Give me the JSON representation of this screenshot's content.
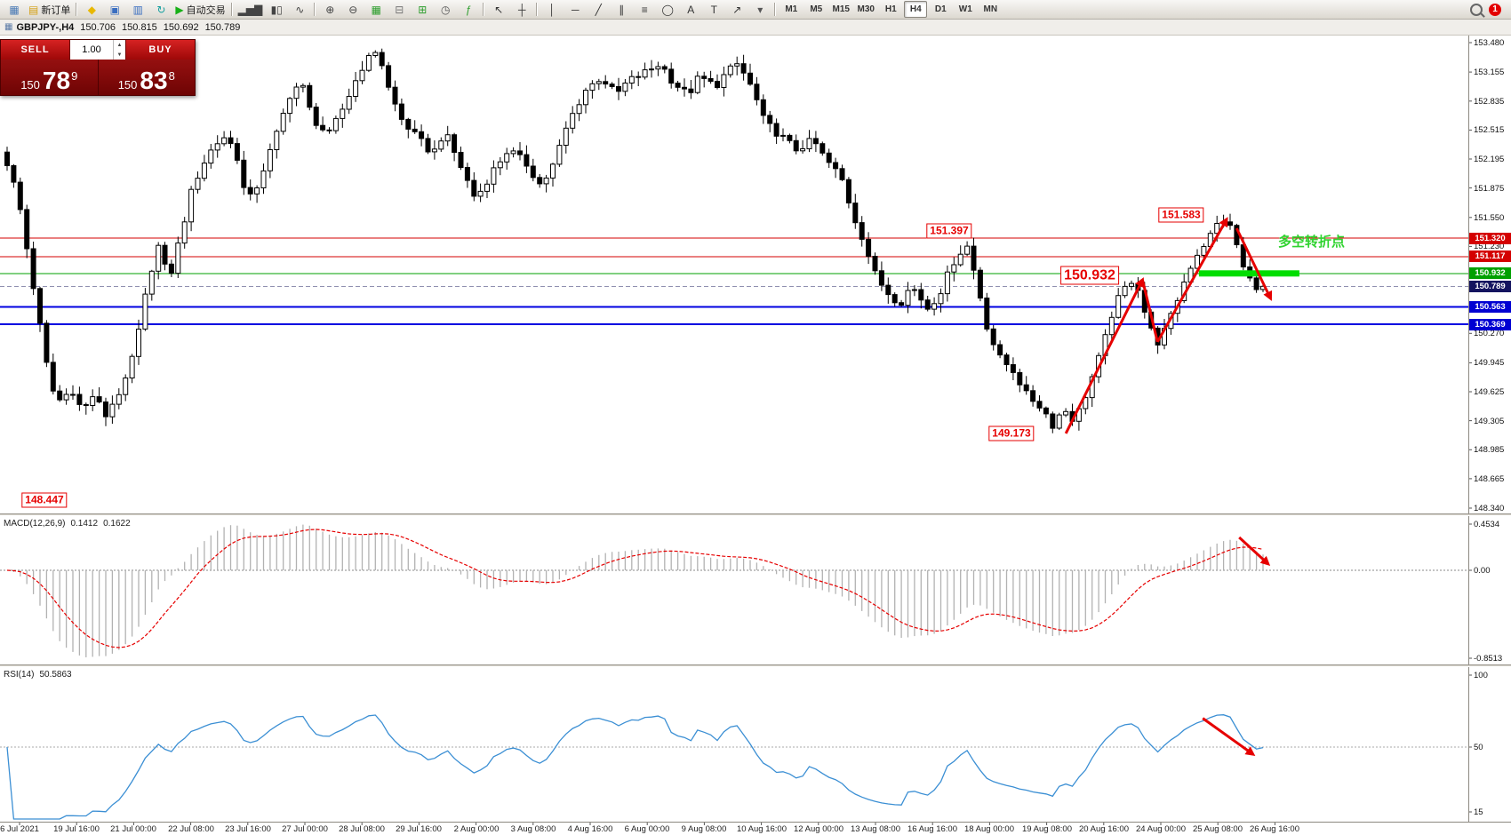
{
  "window": {
    "notification_badge": "1"
  },
  "toolbar": {
    "groups": [
      {
        "items": [
          {
            "name": "new-chart-window",
            "glyph": "▦",
            "color": "#4a7ab5"
          },
          {
            "name": "new-order",
            "glyph": "▤",
            "color": "#d4a017",
            "label": "新订单"
          }
        ]
      },
      {
        "items": [
          {
            "name": "market",
            "glyph": "◆",
            "color": "#e8b800"
          },
          {
            "name": "data-window",
            "glyph": "▣",
            "color": "#3a6ec0"
          },
          {
            "name": "terminal-journal",
            "glyph": "▥",
            "color": "#3a6ec0"
          },
          {
            "name": "refresh",
            "glyph": "↻",
            "color": "#18a0a0"
          },
          {
            "name": "autotrading",
            "glyph": "▶",
            "color": "#18b018",
            "label": "自动交易"
          }
        ]
      },
      {
        "items": [
          {
            "name": "bar-chart-mode",
            "glyph": "▂▅▇",
            "color": "#444444"
          },
          {
            "name": "candlestick-mode",
            "glyph": "▮▯",
            "color": "#444444"
          },
          {
            "name": "line-chart-mode",
            "glyph": "∿",
            "color": "#444444"
          }
        ]
      },
      {
        "items": [
          {
            "name": "zoom-in",
            "glyph": "⊕",
            "color": "#444444"
          },
          {
            "name": "zoom-out",
            "glyph": "⊖",
            "color": "#444444"
          },
          {
            "name": "tile-windows",
            "glyph": "▦",
            "color": "#2e9e2e"
          },
          {
            "name": "cascade-windows",
            "glyph": "⊟",
            "color": "#777777"
          },
          {
            "name": "new-chart",
            "glyph": "⊞",
            "color": "#2e9e2e"
          },
          {
            "name": "period-clock",
            "glyph": "◷",
            "color": "#555555"
          },
          {
            "name": "indicators",
            "glyph": "ƒ",
            "color": "#2e9e2e"
          }
        ]
      },
      {
        "items": [
          {
            "name": "cursor",
            "glyph": "↖",
            "color": "#333333"
          },
          {
            "name": "crosshair",
            "glyph": "┼",
            "color": "#333333"
          }
        ]
      },
      {
        "items": [
          {
            "name": "vertical-line",
            "glyph": "│",
            "color": "#333333"
          },
          {
            "name": "horizontal-line",
            "glyph": "─",
            "color": "#333333"
          },
          {
            "name": "trendline",
            "glyph": "╱",
            "color": "#333333"
          },
          {
            "name": "equidistant-channel",
            "glyph": "∥",
            "color": "#333333"
          },
          {
            "name": "fibonacci",
            "glyph": "≡",
            "color": "#333333"
          },
          {
            "name": "ellipse",
            "glyph": "◯",
            "color": "#333333"
          },
          {
            "name": "text",
            "glyph": "A",
            "color": "#333333"
          },
          {
            "name": "text-label",
            "glyph": "T",
            "color": "#333333"
          },
          {
            "name": "arrows",
            "glyph": "↗",
            "color": "#333333"
          },
          {
            "name": "arrows-dropdown",
            "glyph": "▾",
            "color": "#555555"
          }
        ]
      }
    ],
    "timeframes": [
      "M1",
      "M5",
      "M15",
      "M30",
      "H1",
      "H4",
      "D1",
      "W1",
      "MN"
    ],
    "active_timeframe": "H4"
  },
  "trade_panel": {
    "sell_label": "SELL",
    "buy_label": "BUY",
    "volume": "1.00",
    "stepper_up": "▲",
    "stepper_down": "▼",
    "sell_price": {
      "prefix": "150",
      "big": "78",
      "sup": "9"
    },
    "buy_price": {
      "prefix": "150",
      "big": "83",
      "sup": "8"
    }
  },
  "chart": {
    "symbol_period": "GBPJPY-,H4",
    "ohlc": {
      "open": "150.706",
      "high": "150.815",
      "low": "150.692",
      "close": "150.789"
    },
    "hlines": [
      {
        "label": "151.320",
        "price": 151.32,
        "color": "#d40000",
        "width": 1,
        "tag_bg": "#d40000"
      },
      {
        "label": "151.117",
        "price": 151.117,
        "color": "#d40000",
        "width": 1,
        "tag_bg": "#d40000"
      },
      {
        "label": "150.932",
        "price": 150.932,
        "color": "#00a000",
        "width": 1,
        "tag_bg": "#00a000"
      },
      {
        "label": "150.789",
        "price": 150.789,
        "color": "#9090b0",
        "width": 1,
        "dashed": true,
        "tag_bg": "#14145f"
      },
      {
        "label": "150.563",
        "price": 150.563,
        "color": "#0000e0",
        "width": 2,
        "tag_bg": "#0000d2"
      },
      {
        "label": "150.369",
        "price": 150.369,
        "color": "#0000e0",
        "width": 2,
        "tag_bg": "#0000d2"
      }
    ],
    "callouts": [
      {
        "text": "151.397",
        "t": 0.75,
        "price": 151.4,
        "size": "md"
      },
      {
        "text": "151.583",
        "t": 0.935,
        "price": 151.575,
        "size": "md"
      },
      {
        "text": "150.932",
        "t": 0.862,
        "price": 150.915,
        "size": "lg"
      },
      {
        "text": "149.173",
        "t": 0.8,
        "price": 149.16,
        "size": "md"
      },
      {
        "text": "148.447",
        "t": 0.03,
        "price": 148.43,
        "size": "md"
      }
    ],
    "note": {
      "text": "多空转折点",
      "t": 1.012,
      "price": 151.3,
      "color": "#2fd32f"
    },
    "highlight": {
      "t1": 0.949,
      "t2": 1.029,
      "price": 150.932,
      "color": "#00dd00",
      "thickness": 7
    },
    "trend_arrows": [
      {
        "pts": [
          [
            0.843,
            149.165
          ],
          [
            0.904,
            150.861
          ]
        ],
        "arrow": true
      },
      {
        "pts": [
          [
            0.904,
            150.861
          ],
          [
            0.916,
            150.175
          ]
        ],
        "arrow": false
      },
      {
        "pts": [
          [
            0.916,
            150.175
          ],
          [
            0.971,
            151.528
          ]
        ],
        "arrow": true
      },
      {
        "pts": [
          [
            0.979,
            151.43
          ],
          [
            1.006,
            150.655
          ]
        ],
        "arrow": true
      }
    ],
    "macd_arrow": {
      "pts": [
        [
          0.981,
          0.31
        ],
        [
          1.004,
          0.06
        ]
      ]
    },
    "rsi_arrow": {
      "pts": [
        [
          0.952,
          70
        ],
        [
          0.992,
          45
        ]
      ]
    }
  },
  "price_axis": {
    "labels": [
      "153.480",
      "153.155",
      "152.835",
      "152.515",
      "152.195",
      "151.875",
      "151.550",
      "151.230",
      "150.910",
      "150.590",
      "150.270",
      "149.945",
      "149.625",
      "149.305",
      "148.985",
      "148.665",
      "148.340"
    ]
  },
  "time_axis": {
    "labels": [
      "6 Jul 2021",
      "19 Jul 16:00",
      "21 Jul 00:00",
      "22 Jul 08:00",
      "23 Jul 16:00",
      "27 Jul 00:00",
      "28 Jul 08:00",
      "29 Jul 16:00",
      "2 Aug 00:00",
      "3 Aug 08:00",
      "4 Aug 16:00",
      "6 Aug 00:00",
      "9 Aug 08:00",
      "10 Aug 16:00",
      "12 Aug 00:00",
      "13 Aug 08:00",
      "16 Aug 16:00",
      "18 Aug 00:00",
      "19 Aug 08:00",
      "20 Aug 16:00",
      "24 Aug 00:00",
      "25 Aug 08:00",
      "26 Aug 16:00"
    ]
  },
  "indicators": {
    "macd": {
      "label": "MACD(12,26,9)",
      "value1": "0.1412",
      "value2": "0.1622",
      "axis": [
        "0.4534",
        "0.00",
        "-0.8513"
      ]
    },
    "rsi": {
      "label": "RSI(14)",
      "value": "50.5863",
      "axis": [
        "100",
        "50",
        "15"
      ]
    }
  },
  "chart_data": {
    "type": "candlestick",
    "symbol": "GBPJPY-",
    "timeframe": "H4",
    "current_bar": {
      "open": 150.706,
      "high": 150.815,
      "low": 150.692,
      "close": 150.789
    },
    "y_axis": {
      "min": 148.34,
      "max": 153.48
    },
    "candle_count": 192,
    "levels": [
      151.32,
      151.117,
      150.932,
      150.563,
      150.369
    ],
    "marked_prices": [
      151.397,
      151.583,
      150.932,
      149.173,
      148.447
    ],
    "price_path_anchors": [
      [
        0.0,
        152.15
      ],
      [
        0.009,
        151.75
      ],
      [
        0.022,
        150.7
      ],
      [
        0.031,
        149.95
      ],
      [
        0.039,
        149.5
      ],
      [
        0.052,
        149.65
      ],
      [
        0.06,
        149.4
      ],
      [
        0.069,
        149.6
      ],
      [
        0.078,
        149.35
      ],
      [
        0.086,
        149.55
      ],
      [
        0.095,
        149.75
      ],
      [
        0.105,
        150.3
      ],
      [
        0.113,
        150.9
      ],
      [
        0.122,
        151.3
      ],
      [
        0.128,
        150.8
      ],
      [
        0.139,
        151.4
      ],
      [
        0.148,
        151.9
      ],
      [
        0.16,
        152.25
      ],
      [
        0.172,
        152.45
      ],
      [
        0.182,
        152.3
      ],
      [
        0.191,
        151.7
      ],
      [
        0.199,
        151.9
      ],
      [
        0.213,
        152.4
      ],
      [
        0.225,
        152.9
      ],
      [
        0.234,
        153.05
      ],
      [
        0.243,
        152.65
      ],
      [
        0.256,
        152.45
      ],
      [
        0.269,
        152.8
      ],
      [
        0.282,
        153.2
      ],
      [
        0.295,
        153.42
      ],
      [
        0.303,
        153.0
      ],
      [
        0.313,
        152.65
      ],
      [
        0.325,
        152.45
      ],
      [
        0.339,
        152.25
      ],
      [
        0.348,
        152.5
      ],
      [
        0.36,
        152.15
      ],
      [
        0.373,
        151.75
      ],
      [
        0.386,
        152.05
      ],
      [
        0.399,
        152.3
      ],
      [
        0.413,
        152.15
      ],
      [
        0.425,
        151.9
      ],
      [
        0.434,
        152.1
      ],
      [
        0.447,
        152.6
      ],
      [
        0.46,
        152.95
      ],
      [
        0.473,
        153.1
      ],
      [
        0.485,
        152.9
      ],
      [
        0.494,
        153.05
      ],
      [
        0.508,
        153.15
      ],
      [
        0.52,
        153.25
      ],
      [
        0.53,
        153.05
      ],
      [
        0.542,
        152.9
      ],
      [
        0.551,
        153.1
      ],
      [
        0.564,
        153.0
      ],
      [
        0.573,
        153.15
      ],
      [
        0.582,
        153.25
      ],
      [
        0.594,
        152.95
      ],
      [
        0.603,
        152.6
      ],
      [
        0.616,
        152.45
      ],
      [
        0.628,
        152.3
      ],
      [
        0.642,
        152.4
      ],
      [
        0.651,
        152.2
      ],
      [
        0.664,
        152.0
      ],
      [
        0.673,
        151.6
      ],
      [
        0.682,
        151.3
      ],
      [
        0.69,
        150.95
      ],
      [
        0.699,
        150.75
      ],
      [
        0.711,
        150.6
      ],
      [
        0.72,
        150.8
      ],
      [
        0.733,
        150.55
      ],
      [
        0.742,
        150.7
      ],
      [
        0.755,
        151.1
      ],
      [
        0.764,
        151.25
      ],
      [
        0.772,
        150.85
      ],
      [
        0.781,
        150.3
      ],
      [
        0.79,
        150.0
      ],
      [
        0.802,
        149.85
      ],
      [
        0.811,
        149.6
      ],
      [
        0.824,
        149.45
      ],
      [
        0.833,
        149.25
      ],
      [
        0.841,
        149.45
      ],
      [
        0.85,
        149.3
      ],
      [
        0.859,
        149.6
      ],
      [
        0.872,
        150.1
      ],
      [
        0.881,
        150.55
      ],
      [
        0.889,
        150.75
      ],
      [
        0.898,
        150.9
      ],
      [
        0.907,
        150.45
      ],
      [
        0.915,
        150.15
      ],
      [
        0.924,
        150.35
      ],
      [
        0.936,
        150.8
      ],
      [
        0.945,
        151.1
      ],
      [
        0.958,
        151.35
      ],
      [
        0.967,
        151.55
      ],
      [
        0.976,
        151.4
      ],
      [
        0.984,
        151.0
      ],
      [
        0.992,
        150.8
      ],
      [
        1.0,
        150.789
      ]
    ]
  }
}
